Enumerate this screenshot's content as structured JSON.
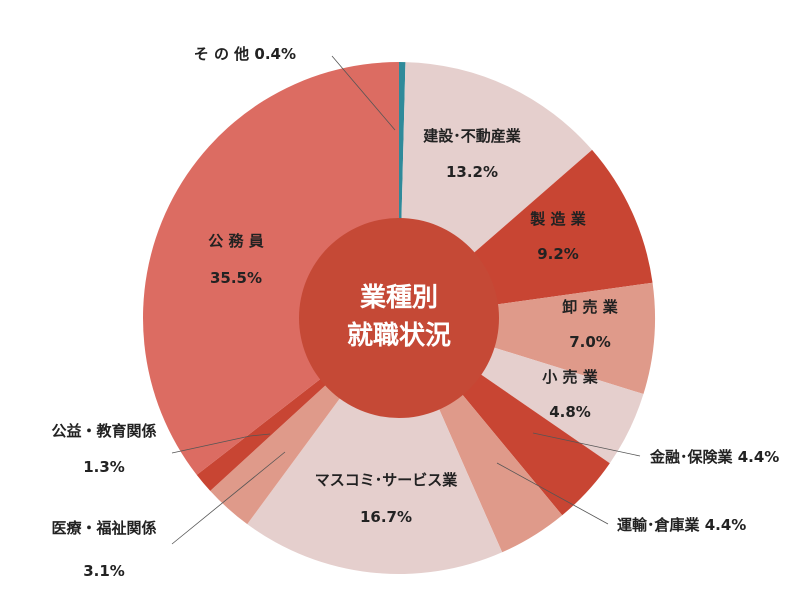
{
  "chart_data": {
    "type": "pie",
    "center_label": [
      "業種別",
      "就職状況"
    ],
    "slices": [
      {
        "label": "その他",
        "display": "そ の 他",
        "value": 0.4,
        "value_text": "0.4%",
        "color": "#2f8a9a"
      },
      {
        "label": "建設・不動産業",
        "display": "建設･不動産業",
        "value": 13.2,
        "value_text": "13.2%",
        "color": "#e5cfcd"
      },
      {
        "label": "製造業",
        "display": "製  造  業",
        "value": 9.2,
        "value_text": "9.2%",
        "color": "#c84533"
      },
      {
        "label": "卸売業",
        "display": "卸  売  業",
        "value": 7.0,
        "value_text": "7.0%",
        "color": "#df9a8a"
      },
      {
        "label": "小売業",
        "display": "小  売  業",
        "value": 4.8,
        "value_text": "4.8%",
        "color": "#e5cfcd"
      },
      {
        "label": "金融・保険業",
        "display": "金融･保険業",
        "value": 4.4,
        "value_text": "4.4%",
        "color": "#c84533"
      },
      {
        "label": "運輸・倉庫業",
        "display": "運輸･倉庫業",
        "value": 4.4,
        "value_text": "4.4%",
        "color": "#df9a8a"
      },
      {
        "label": "マスコミ・サービス業",
        "display": "マスコミ･サービス業",
        "value": 16.7,
        "value_text": "16.7%",
        "color": "#e5cfcd"
      },
      {
        "label": "医療・福祉関係",
        "display": "医療・福祉関係",
        "value": 3.1,
        "value_text": "3.1%",
        "color": "#df9a8a"
      },
      {
        "label": "公益・教育関係",
        "display": "公益・教育関係",
        "value": 1.3,
        "value_text": "1.3%",
        "color": "#c84533"
      },
      {
        "label": "公務員",
        "display": "公  務  員",
        "value": 35.5,
        "value_text": "35.5%",
        "color": "#dc6c62"
      }
    ],
    "center_color": "#c54936"
  }
}
